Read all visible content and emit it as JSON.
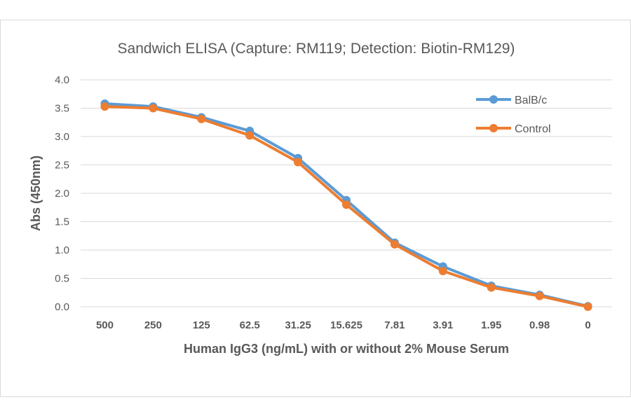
{
  "chart_data": {
    "type": "line",
    "title": "Sandwich ELISA (Capture:  RM119; Detection: Biotin-RM129)",
    "xlabel": "Human IgG3 (ng/mL) with or without 2% Mouse Serum",
    "ylabel": "Abs (450nm)",
    "categories": [
      "500",
      "250",
      "125",
      "62.5",
      "31.25",
      "15.625",
      "7.81",
      "3.91",
      "1.95",
      "0.98",
      "0"
    ],
    "y_ticks": [
      "0.0",
      "0.5",
      "1.0",
      "1.5",
      "2.0",
      "2.5",
      "3.0",
      "3.5",
      "4.0"
    ],
    "ylim": [
      0,
      4.0
    ],
    "grid": true,
    "legend_position": "right",
    "series": [
      {
        "name": "BalB/c",
        "color": "#5b9bd5",
        "values": [
          3.58,
          3.53,
          3.34,
          3.1,
          2.62,
          1.88,
          1.13,
          0.71,
          0.37,
          0.21,
          0.01
        ]
      },
      {
        "name": "Control",
        "color": "#ed7d31",
        "values": [
          3.53,
          3.5,
          3.31,
          3.02,
          2.55,
          1.8,
          1.1,
          0.63,
          0.34,
          0.19,
          0.0
        ]
      }
    ]
  }
}
